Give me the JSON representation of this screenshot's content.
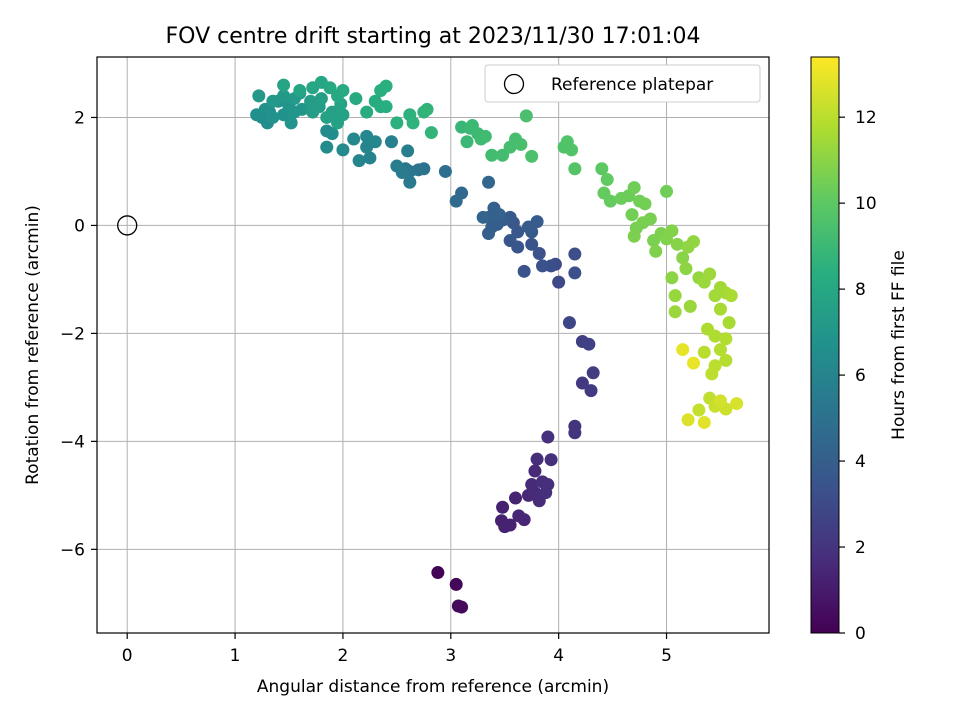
{
  "chart_data": {
    "type": "scatter",
    "title": "FOV centre drift starting at 2023/11/30 17:01:04",
    "xlabel": "Angular distance from reference (arcmin)",
    "ylabel": "Rotation from reference (arcmin)",
    "xlim": [
      -0.28,
      5.95
    ],
    "ylim": [
      -7.55,
      3.12
    ],
    "xticks": [
      0,
      1,
      2,
      3,
      4,
      5
    ],
    "yticks": [
      -6,
      -4,
      -2,
      0,
      2
    ],
    "grid": true,
    "legend": {
      "placement": "top-right",
      "entries": [
        "Reference platepar"
      ]
    },
    "reference_point": {
      "x": 0,
      "y": 0,
      "label": "Reference platepar"
    },
    "colorbar": {
      "label": "Hours from first FF file",
      "min": 0,
      "max": 13.4,
      "ticks": [
        0,
        2,
        4,
        6,
        8,
        10,
        12
      ],
      "colormap": "viridis"
    },
    "series": [
      {
        "points": [
          [
            2.88,
            -6.43,
            0.1
          ],
          [
            3.05,
            -6.65,
            0.2
          ],
          [
            3.07,
            -7.05,
            0.3
          ],
          [
            3.1,
            -7.07,
            0.35
          ],
          [
            3.48,
            -5.22,
            1.2
          ],
          [
            3.47,
            -5.47,
            1.2
          ],
          [
            3.5,
            -5.58,
            1.25
          ],
          [
            3.55,
            -5.55,
            1.3
          ],
          [
            3.6,
            -5.05,
            1.35
          ],
          [
            3.63,
            -5.38,
            1.4
          ],
          [
            3.68,
            -5.45,
            1.4
          ],
          [
            3.72,
            -5.0,
            1.5
          ],
          [
            3.75,
            -4.8,
            1.55
          ],
          [
            3.78,
            -4.95,
            1.6
          ],
          [
            3.78,
            -4.55,
            1.6
          ],
          [
            3.82,
            -5.1,
            1.65
          ],
          [
            3.85,
            -4.75,
            1.7
          ],
          [
            3.8,
            -4.33,
            1.7
          ],
          [
            3.9,
            -4.8,
            1.75
          ],
          [
            3.88,
            -4.95,
            1.8
          ],
          [
            3.93,
            -4.34,
            1.8
          ],
          [
            3.9,
            -3.92,
            1.85
          ],
          [
            4.15,
            -3.72,
            2.0
          ],
          [
            4.15,
            -3.84,
            2.05
          ],
          [
            4.22,
            -2.92,
            2.2
          ],
          [
            4.3,
            -3.06,
            2.3
          ],
          [
            4.32,
            -2.73,
            2.35
          ],
          [
            4.22,
            -2.15,
            2.5
          ],
          [
            4.28,
            -2.2,
            2.6
          ],
          [
            4.1,
            -1.8,
            2.8
          ],
          [
            4.0,
            -1.05,
            3.0
          ],
          [
            3.97,
            -0.72,
            3.1
          ],
          [
            3.93,
            -0.75,
            3.15
          ],
          [
            4.15,
            -0.53,
            3.2
          ],
          [
            4.15,
            -0.88,
            3.25
          ],
          [
            3.85,
            -0.75,
            3.3
          ],
          [
            3.82,
            -0.52,
            3.35
          ],
          [
            3.75,
            -0.35,
            3.4
          ],
          [
            3.68,
            -0.85,
            3.45
          ],
          [
            3.62,
            -0.4,
            3.5
          ],
          [
            3.55,
            -0.28,
            3.55
          ],
          [
            3.58,
            0.05,
            3.6
          ],
          [
            3.62,
            -0.12,
            3.65
          ],
          [
            3.55,
            0.15,
            3.7
          ],
          [
            3.75,
            -0.12,
            3.75
          ],
          [
            3.8,
            0.07,
            3.8
          ],
          [
            3.72,
            -0.03,
            3.85
          ],
          [
            3.48,
            0.1,
            3.9
          ],
          [
            3.43,
            0.02,
            3.95
          ],
          [
            3.38,
            -0.03,
            4.0
          ],
          [
            3.35,
            -0.15,
            4.05
          ],
          [
            3.35,
            0.15,
            4.1
          ],
          [
            3.4,
            0.32,
            4.15
          ],
          [
            3.45,
            0.2,
            4.2
          ],
          [
            3.3,
            0.15,
            4.3
          ],
          [
            3.35,
            0.8,
            4.4
          ],
          [
            3.1,
            0.6,
            4.5
          ],
          [
            3.05,
            0.45,
            4.6
          ],
          [
            2.95,
            1.0,
            4.8
          ],
          [
            2.75,
            1.05,
            5.0
          ],
          [
            2.7,
            1.03,
            5.1
          ],
          [
            2.62,
            1.0,
            5.2
          ],
          [
            2.58,
            1.05,
            5.3
          ],
          [
            2.62,
            0.8,
            5.4
          ],
          [
            2.55,
            0.98,
            5.5
          ],
          [
            2.5,
            1.1,
            5.6
          ],
          [
            2.6,
            1.38,
            5.7
          ],
          [
            2.45,
            1.55,
            5.8
          ],
          [
            2.25,
            1.25,
            5.9
          ],
          [
            2.22,
            1.45,
            6.0
          ],
          [
            2.15,
            1.2,
            6.05
          ],
          [
            2.22,
            1.65,
            6.1
          ],
          [
            2.3,
            1.55,
            6.15
          ],
          [
            2.1,
            1.6,
            6.2
          ],
          [
            2.0,
            1.4,
            6.3
          ],
          [
            1.85,
            1.45,
            6.35
          ],
          [
            1.85,
            1.75,
            6.4
          ],
          [
            1.9,
            1.7,
            6.45
          ],
          [
            1.3,
            1.9,
            6.5
          ],
          [
            1.25,
            2.0,
            6.55
          ],
          [
            1.32,
            2.1,
            6.6
          ],
          [
            1.2,
            2.05,
            6.65
          ],
          [
            1.28,
            2.15,
            6.7
          ],
          [
            1.35,
            2.0,
            6.75
          ],
          [
            1.45,
            2.05,
            6.8
          ],
          [
            1.52,
            1.9,
            6.85
          ],
          [
            1.4,
            2.3,
            6.9
          ],
          [
            1.5,
            2.2,
            6.95
          ],
          [
            1.55,
            2.1,
            7.0
          ],
          [
            1.62,
            2.15,
            7.05
          ],
          [
            1.22,
            2.4,
            7.1
          ],
          [
            1.35,
            2.3,
            7.15
          ],
          [
            1.45,
            2.4,
            7.2
          ],
          [
            1.55,
            2.35,
            7.25
          ],
          [
            1.6,
            2.45,
            7.3
          ],
          [
            1.7,
            2.3,
            7.35
          ],
          [
            1.78,
            2.2,
            7.4
          ],
          [
            1.72,
            2.1,
            7.45
          ],
          [
            1.8,
            2.35,
            7.5
          ],
          [
            1.9,
            2.1,
            7.55
          ],
          [
            1.95,
            1.9,
            7.6
          ],
          [
            2.0,
            2.05,
            7.65
          ],
          [
            1.85,
            2.0,
            7.7
          ],
          [
            1.98,
            2.25,
            7.75
          ],
          [
            1.45,
            2.6,
            7.8
          ],
          [
            1.6,
            2.5,
            7.85
          ],
          [
            1.72,
            2.55,
            7.9
          ],
          [
            1.8,
            2.65,
            7.95
          ],
          [
            1.88,
            2.55,
            8.0
          ],
          [
            1.95,
            2.4,
            8.05
          ],
          [
            2.0,
            2.5,
            8.1
          ],
          [
            2.12,
            2.35,
            8.15
          ],
          [
            2.22,
            2.1,
            8.2
          ],
          [
            2.3,
            2.3,
            8.25
          ],
          [
            2.35,
            2.2,
            8.3
          ],
          [
            2.4,
            2.2,
            8.35
          ],
          [
            2.35,
            2.5,
            8.4
          ],
          [
            2.4,
            2.58,
            8.45
          ],
          [
            2.5,
            1.9,
            8.5
          ],
          [
            2.62,
            2.05,
            8.55
          ],
          [
            2.65,
            1.9,
            8.6
          ],
          [
            2.75,
            2.1,
            8.65
          ],
          [
            2.78,
            2.15,
            8.7
          ],
          [
            2.82,
            1.72,
            8.75
          ],
          [
            3.1,
            1.82,
            8.9
          ],
          [
            3.15,
            1.55,
            8.95
          ],
          [
            3.18,
            1.8,
            9.0
          ],
          [
            3.2,
            1.85,
            9.0
          ],
          [
            3.25,
            1.7,
            9.05
          ],
          [
            3.28,
            1.6,
            9.1
          ],
          [
            3.32,
            1.65,
            9.15
          ],
          [
            3.38,
            1.3,
            9.2
          ],
          [
            3.48,
            1.3,
            9.25
          ],
          [
            3.55,
            1.45,
            9.3
          ],
          [
            3.6,
            1.6,
            9.35
          ],
          [
            3.65,
            1.5,
            9.4
          ],
          [
            3.7,
            2.03,
            9.45
          ],
          [
            3.75,
            1.28,
            9.5
          ],
          [
            4.05,
            1.45,
            9.6
          ],
          [
            4.08,
            1.55,
            9.65
          ],
          [
            4.12,
            1.4,
            9.7
          ],
          [
            4.15,
            1.05,
            9.75
          ],
          [
            4.4,
            1.05,
            10.0
          ],
          [
            4.45,
            0.85,
            10.1
          ],
          [
            4.42,
            0.6,
            10.15
          ],
          [
            4.48,
            0.45,
            10.2
          ],
          [
            4.58,
            0.5,
            10.3
          ],
          [
            4.65,
            0.55,
            10.35
          ],
          [
            4.7,
            0.7,
            10.4
          ],
          [
            4.75,
            0.45,
            10.45
          ],
          [
            4.8,
            0.4,
            10.5
          ],
          [
            4.68,
            0.2,
            10.5
          ],
          [
            4.72,
            -0.05,
            10.55
          ],
          [
            4.78,
            0.05,
            10.6
          ],
          [
            4.85,
            0.12,
            10.6
          ],
          [
            4.88,
            -0.28,
            10.65
          ],
          [
            4.7,
            -0.2,
            10.7
          ],
          [
            4.95,
            -0.15,
            10.7
          ],
          [
            4.9,
            -0.48,
            10.75
          ],
          [
            5.0,
            -0.25,
            10.8
          ],
          [
            5.0,
            0.63,
            10.4
          ],
          [
            5.05,
            -0.1,
            10.85
          ],
          [
            5.1,
            -0.35,
            10.9
          ],
          [
            5.15,
            -0.6,
            10.95
          ],
          [
            5.05,
            -0.97,
            11.0
          ],
          [
            5.18,
            -0.8,
            11.05
          ],
          [
            5.2,
            -0.4,
            11.1
          ],
          [
            5.25,
            -0.3,
            11.15
          ],
          [
            5.3,
            -0.97,
            11.2
          ],
          [
            5.08,
            -1.3,
            11.25
          ],
          [
            5.22,
            -1.5,
            11.3
          ],
          [
            5.08,
            -1.6,
            11.3
          ],
          [
            5.35,
            -1.05,
            11.35
          ],
          [
            5.4,
            -0.9,
            11.4
          ],
          [
            5.45,
            -1.3,
            11.45
          ],
          [
            5.5,
            -1.15,
            11.5
          ],
          [
            5.55,
            -1.25,
            11.55
          ],
          [
            5.5,
            -1.55,
            11.6
          ],
          [
            5.58,
            -1.8,
            11.6
          ],
          [
            5.6,
            -1.3,
            11.65
          ],
          [
            5.38,
            -1.92,
            11.7
          ],
          [
            5.45,
            -2.05,
            11.75
          ],
          [
            5.55,
            -2.1,
            11.8
          ],
          [
            5.5,
            -2.3,
            11.85
          ],
          [
            5.55,
            -2.5,
            11.9
          ],
          [
            5.35,
            -2.35,
            11.95
          ],
          [
            5.45,
            -2.6,
            12.0
          ],
          [
            5.42,
            -2.75,
            12.05
          ],
          [
            5.4,
            -3.2,
            12.1
          ],
          [
            5.3,
            -3.42,
            12.2
          ],
          [
            5.45,
            -3.35,
            12.3
          ],
          [
            5.55,
            -3.4,
            12.4
          ],
          [
            5.5,
            -3.25,
            12.5
          ],
          [
            5.65,
            -3.3,
            12.6
          ],
          [
            5.2,
            -3.6,
            12.7
          ],
          [
            5.35,
            -3.65,
            12.8
          ],
          [
            5.15,
            -2.3,
            12.9
          ],
          [
            5.25,
            -2.55,
            13.0
          ]
        ]
      }
    ]
  }
}
